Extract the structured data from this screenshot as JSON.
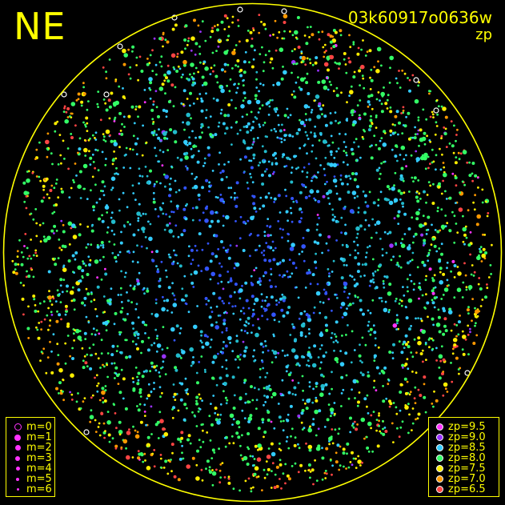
{
  "plot": {
    "direction_label": "NE",
    "frame_id": "03k60917o0636w",
    "quantity": "zp",
    "colors": {
      "background": "#000000",
      "annotation": "#ffff00",
      "saturated": "#ffffff"
    }
  },
  "magnitude_legend": {
    "items": [
      {
        "label": "m=0",
        "marker": "ring"
      },
      {
        "label": "m=1",
        "marker": "disc"
      },
      {
        "label": "m=2",
        "marker": "disc"
      },
      {
        "label": "m=3",
        "marker": "disc"
      },
      {
        "label": "m=4",
        "marker": "disc"
      },
      {
        "label": "m=5",
        "marker": "disc"
      },
      {
        "label": "m=6",
        "marker": "disc"
      }
    ]
  },
  "zp_legend": {
    "items": [
      {
        "label": "zp=9.5",
        "color": "#ff33ff"
      },
      {
        "label": "zp=9.0",
        "color": "#9933ff"
      },
      {
        "label": "zp=8.5",
        "color": "#33ccff"
      },
      {
        "label": "zp=8.0",
        "color": "#33ff66"
      },
      {
        "label": "zp=7.5",
        "color": "#ffee00"
      },
      {
        "label": "zp=7.0",
        "color": "#ff9900"
      },
      {
        "label": "zp=6.5",
        "color": "#ff4444"
      }
    ]
  }
}
